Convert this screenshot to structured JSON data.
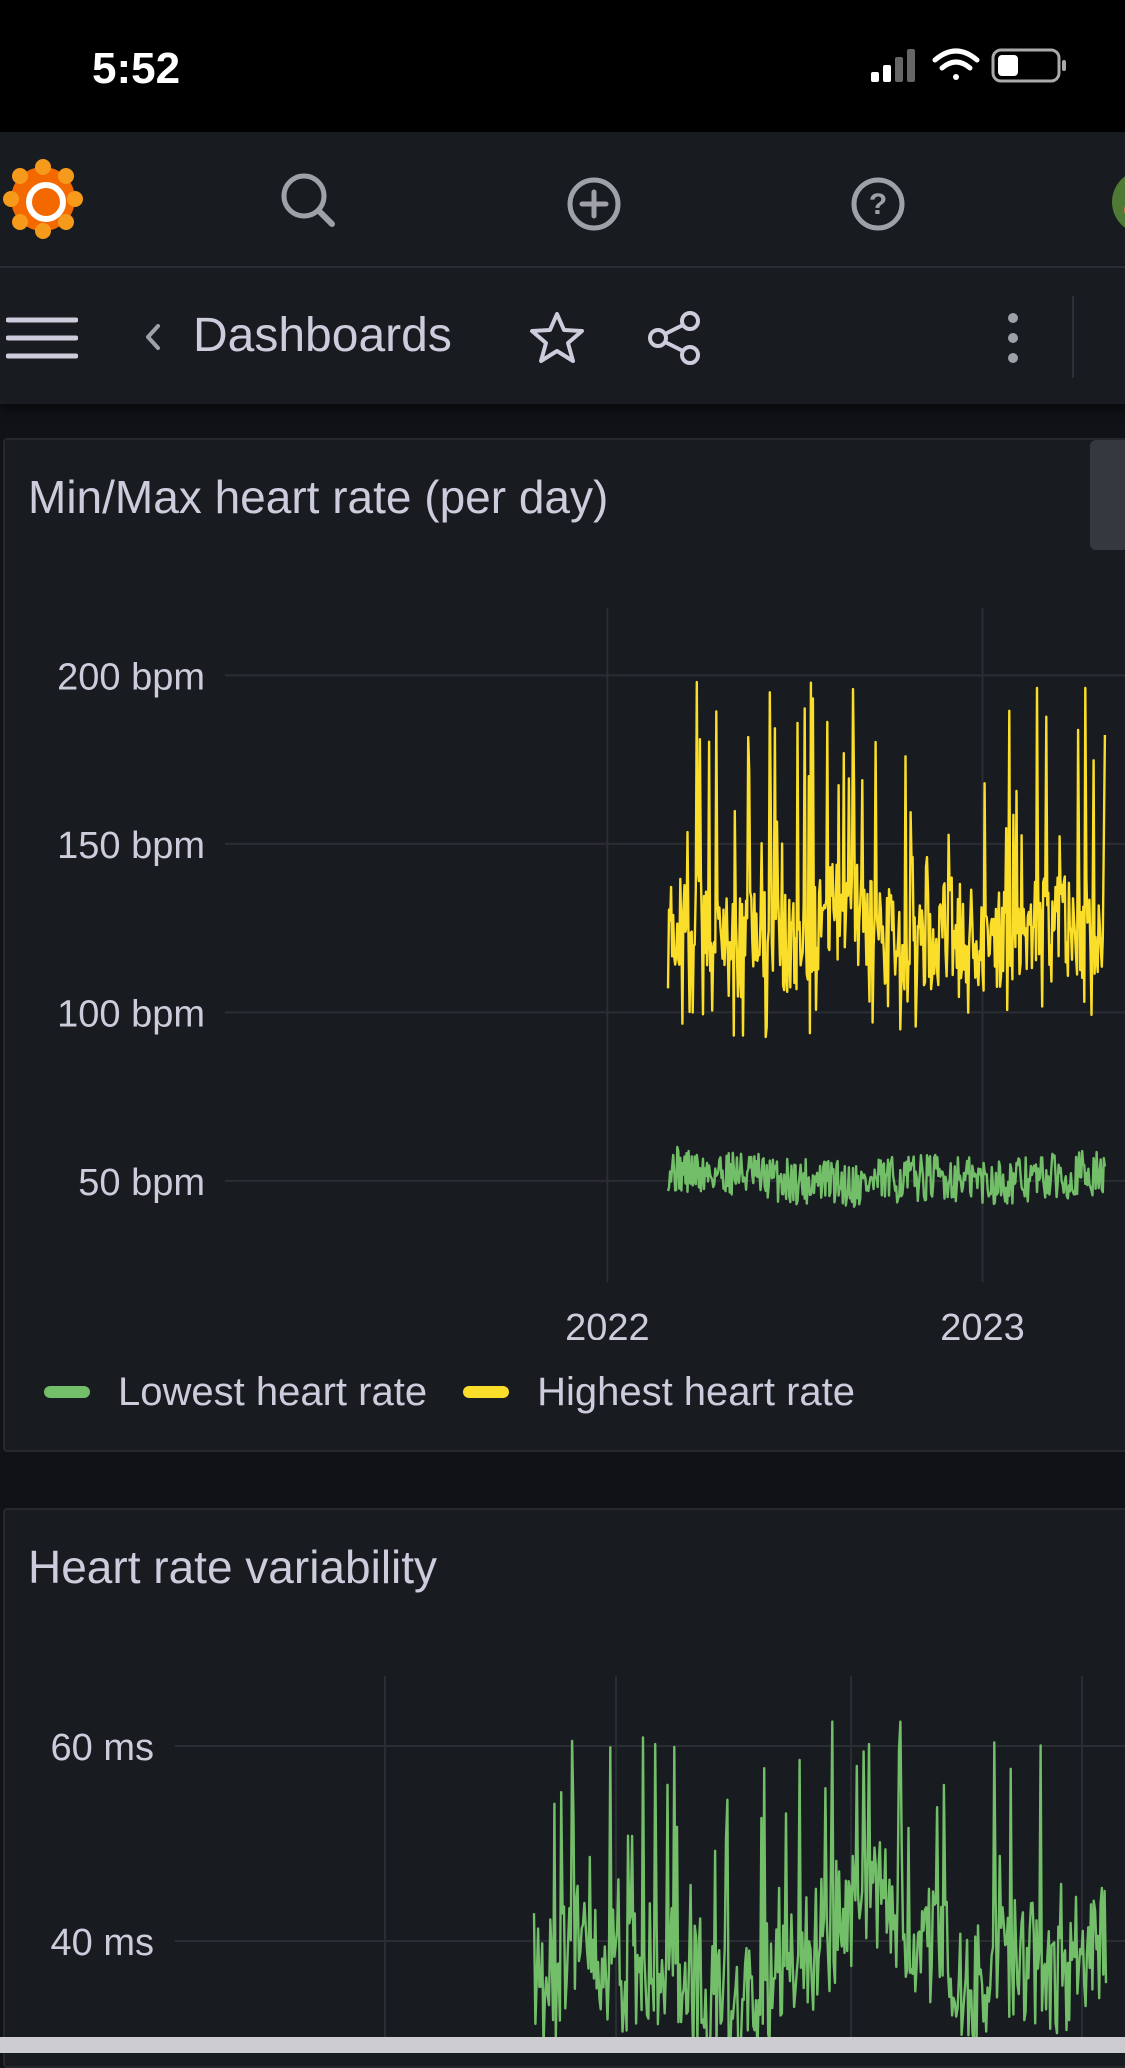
{
  "status_bar": {
    "time": "5:52"
  },
  "nav": {
    "title": "Dashboards",
    "icons": [
      "grafana-logo-icon",
      "search-icon",
      "add-icon",
      "help-icon",
      "avatar",
      "menu-icon",
      "chevron-left-icon",
      "star-icon",
      "share-icon",
      "more-vertical-icon"
    ]
  },
  "colors": {
    "lowest": "#73bf69",
    "highest": "#fade2a",
    "background": "#111217",
    "panel": "#181b1f"
  },
  "panels": [
    {
      "title": "Min/Max heart rate (per day)"
    },
    {
      "title": "Heart rate variability"
    }
  ],
  "legend": {
    "lowest": "Lowest heart rate",
    "highest": "Highest heart rate"
  },
  "chart_data": [
    {
      "type": "line",
      "title": "Min/Max heart rate (per day)",
      "x_ticks": [
        "2022",
        "2023"
      ],
      "x_range": [
        "2020-12-25",
        "2023-05-05"
      ],
      "y_ticks": [
        {
          "value": 200,
          "label": "200 bpm"
        },
        {
          "value": 150,
          "label": "150 bpm"
        },
        {
          "value": 100,
          "label": "100 bpm"
        },
        {
          "value": 50,
          "label": "50 bpm"
        }
      ],
      "ylim": [
        20,
        220
      ],
      "grid": true,
      "legend_position": "bottom-left",
      "series": [
        {
          "name": "Lowest heart rate",
          "color": "#73bf69",
          "x": [
            "2022-03",
            "2022-04",
            "2022-05",
            "2022-06",
            "2022-07",
            "2022-08",
            "2022-09",
            "2022-10",
            "2022-11",
            "2022-12",
            "2023-01",
            "2023-02",
            "2023-03",
            "2023-04"
          ],
          "y": [
            54,
            52,
            53,
            51,
            50,
            50,
            49,
            50,
            51,
            51,
            50,
            50,
            51,
            52
          ]
        },
        {
          "name": "Highest heart rate",
          "color": "#fade2a",
          "x": [
            "2022-03",
            "2022-04",
            "2022-05",
            "2022-06",
            "2022-07",
            "2022-08",
            "2022-09",
            "2022-10",
            "2022-11",
            "2022-12",
            "2023-01",
            "2023-02",
            "2023-03",
            "2023-04"
          ],
          "y": [
            125,
            130,
            118,
            124,
            120,
            128,
            132,
            122,
            118,
            126,
            120,
            124,
            127,
            125
          ]
        }
      ]
    },
    {
      "type": "line",
      "title": "Heart rate variability",
      "y_ticks": [
        {
          "value": 60,
          "label": "60 ms"
        },
        {
          "value": 40,
          "label": "40 ms"
        }
      ],
      "grid": true,
      "series": [
        {
          "name": "Heart rate variability",
          "color": "#73bf69",
          "x": [
            "2022-03",
            "2022-04",
            "2022-05",
            "2022-06",
            "2022-07",
            "2022-08",
            "2022-09",
            "2022-10",
            "2022-11",
            "2022-12",
            "2023-01",
            "2023-02",
            "2023-03",
            "2023-04"
          ],
          "y": [
            34,
            40,
            36,
            38,
            33,
            35,
            37,
            42,
            45,
            40,
            36,
            38,
            37,
            39
          ]
        }
      ]
    }
  ]
}
